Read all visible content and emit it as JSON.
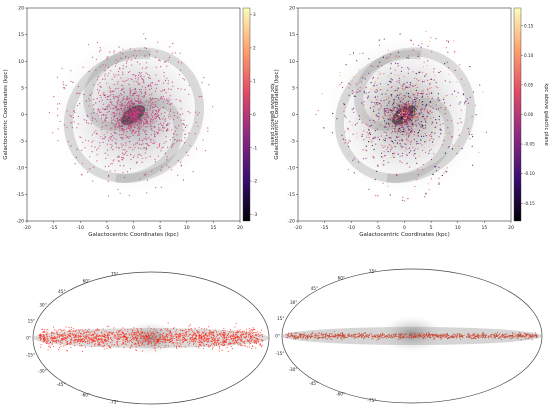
{
  "chart_data": [
    {
      "type": "scatter",
      "title": "",
      "xlabel": "Galactocentric Coordinates (kpc)",
      "ylabel": "Galactocentric Coordinates (kpc)",
      "xlim": [
        -20,
        20
      ],
      "ylim": [
        -20,
        20
      ],
      "xticks": [
        "-20",
        "-15",
        "-10",
        "-5",
        "0",
        "5",
        "10",
        "15",
        "20"
      ],
      "yticks": [
        "-20",
        "-15",
        "-10",
        "-5",
        "0",
        "5",
        "10",
        "15",
        "20"
      ],
      "background": "grey face-on spiral galaxy map",
      "colorbar": {
        "label": "kpc above galactic plane",
        "range": [
          -3.2,
          3.2
        ],
        "ticks": [
          "-3",
          "-2",
          "-1",
          "0",
          "1",
          "2",
          "3"
        ],
        "colormap": "magma"
      },
      "points": {
        "distribution": "dense, concentrated toward center, r < 14 kpc",
        "dominant_color": "#c73f7f"
      }
    },
    {
      "type": "scatter",
      "title": "",
      "xlabel": "Galactocentric Coordinates (kpc)",
      "ylabel": "Galactocentric Coordinates (kpc)",
      "xlim": [
        -20,
        20
      ],
      "ylim": [
        -20,
        20
      ],
      "xticks": [
        "-20",
        "-15",
        "-10",
        "-5",
        "0",
        "5",
        "10",
        "15",
        "20"
      ],
      "yticks": [
        "-20",
        "-15",
        "-10",
        "-5",
        "0",
        "5",
        "10",
        "15",
        "20"
      ],
      "background": "grey face-on spiral galaxy map",
      "colorbar": {
        "label": "kpc above galactic plane",
        "range": [
          -0.18,
          0.18
        ],
        "ticks": [
          "-0.15",
          "-0.10",
          "-0.05",
          "0.00",
          "0.05",
          "0.10",
          "0.15"
        ],
        "colormap": "magma"
      },
      "points": {
        "distribution": "spread across disk, r < 16 kpc",
        "dominant_color": "#7a2a7e"
      }
    },
    {
      "type": "scatter",
      "projection": "mollweide",
      "lat_labels": [
        "75°",
        "60°",
        "45°",
        "30°",
        "15°",
        "0°",
        "-15°",
        "-30°",
        "-45°",
        "-60°",
        "-75°"
      ],
      "background": "grey all-sky Milky Way map",
      "points": {
        "distribution": "thick band along galactic plane, |b| < 15°",
        "color": "#ff2a1a"
      }
    },
    {
      "type": "scatter",
      "projection": "mollweide",
      "lat_labels": [
        "75°",
        "60°",
        "45°",
        "30°",
        "15°",
        "0°",
        "-15°",
        "-30°",
        "-45°",
        "-60°",
        "-75°"
      ],
      "background": "grey all-sky Milky Way map",
      "points": {
        "distribution": "very thin band along galactic plane, |b| < 3°",
        "color": "#c9402a"
      }
    }
  ]
}
